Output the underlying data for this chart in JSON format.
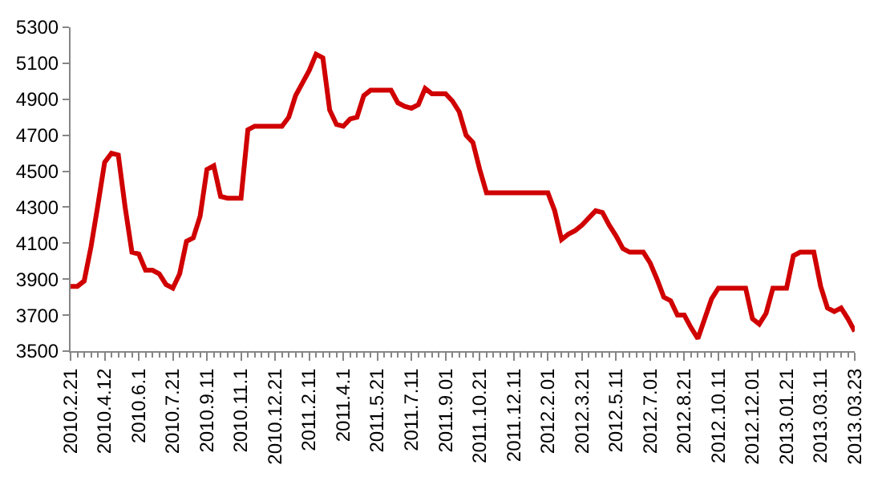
{
  "chart_data": {
    "type": "line",
    "categories": [
      "2010.2.21",
      null,
      null,
      null,
      null,
      "2010.4.12",
      null,
      null,
      null,
      null,
      "2010.6.1",
      null,
      null,
      null,
      null,
      "2010.7.21",
      null,
      null,
      null,
      null,
      "2010.9.11",
      null,
      null,
      null,
      null,
      "2010.11.1",
      null,
      null,
      null,
      null,
      "2010.12.21",
      null,
      null,
      null,
      null,
      "2011.2.11",
      null,
      null,
      null,
      null,
      "2011.4.1",
      null,
      null,
      null,
      null,
      "2011.5.21",
      null,
      null,
      null,
      null,
      "2011.7.11",
      null,
      null,
      null,
      null,
      "2011.9.01",
      null,
      null,
      null,
      null,
      "2011.10.21",
      null,
      null,
      null,
      null,
      "2011.12.11",
      null,
      null,
      null,
      null,
      "2012.2.01",
      null,
      null,
      null,
      null,
      "2012.3.21",
      null,
      null,
      null,
      null,
      "2012.5.11",
      null,
      null,
      null,
      null,
      "2012.7.01",
      null,
      null,
      null,
      null,
      "2012.8.21",
      null,
      null,
      null,
      null,
      "2012.10.11",
      null,
      null,
      null,
      null,
      "2012.12.01",
      null,
      null,
      null,
      null,
      "2013.01.21",
      null,
      null,
      null,
      null,
      "2013.03.11",
      null,
      null,
      null,
      null,
      "2013.03.23"
    ],
    "series": [
      {
        "color": "#d00000",
        "values": [
          3860,
          3860,
          3890,
          4080,
          4310,
          4550,
          4600,
          4590,
          4300,
          4050,
          4040,
          3950,
          3950,
          3930,
          3870,
          3850,
          3930,
          4110,
          4130,
          4250,
          4510,
          4530,
          4360,
          4350,
          4350,
          4350,
          4730,
          4750,
          4750,
          4750,
          4750,
          4750,
          4800,
          4920,
          4990,
          5060,
          5150,
          5130,
          4840,
          4760,
          4750,
          4790,
          4800,
          4920,
          4950,
          4950,
          4950,
          4950,
          4880,
          4860,
          4850,
          4870,
          4960,
          4930,
          4930,
          4930,
          4890,
          4830,
          4700,
          4660,
          4510,
          4380,
          4380,
          4380,
          4380,
          4380,
          4380,
          4380,
          4380,
          4380,
          4380,
          4280,
          4120,
          4150,
          4170,
          4200,
          4240,
          4280,
          4270,
          4200,
          4140,
          4070,
          4050,
          4050,
          4050,
          3990,
          3900,
          3800,
          3780,
          3700,
          3700,
          3630,
          3570,
          3680,
          3790,
          3850,
          3850,
          3850,
          3850,
          3850,
          3680,
          3650,
          3710,
          3850,
          3850,
          3850,
          4030,
          4050,
          4050,
          4050,
          3860,
          3740,
          3720,
          3740,
          3680,
          3610
        ]
      }
    ],
    "ylim": [
      3500,
      5300
    ],
    "yticks": [
      3500,
      3700,
      3900,
      4100,
      4300,
      4500,
      4700,
      4900,
      5100,
      5300
    ],
    "grid": false,
    "legend": false,
    "marker": "none",
    "line_style": "solid"
  }
}
